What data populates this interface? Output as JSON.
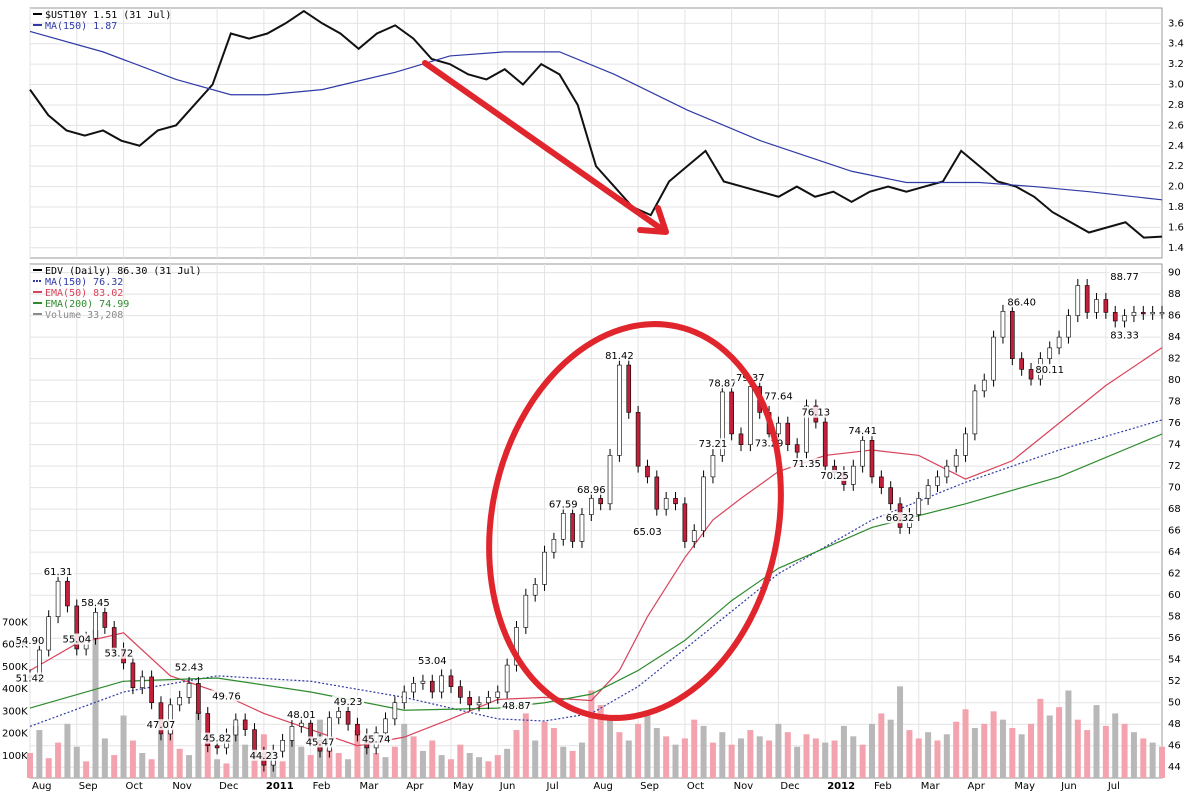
{
  "chart_data": [
    {
      "type": "line",
      "legend": [
        {
          "text": "$UST10Y 1.51 (31 Jul)",
          "color": "#000000"
        },
        {
          "text": "MA(150) 1.87",
          "color": "#2f3aa6"
        }
      ],
      "ylim": [
        1.3,
        3.75
      ],
      "yticks": [
        "1.4",
        "1.6",
        "1.8",
        "2.0",
        "2.2",
        "2.4",
        "2.6",
        "2.8",
        "3.0",
        "3.2",
        "3.4",
        "3.6"
      ],
      "series": [
        {
          "name": "$UST10Y",
          "x": [
            0,
            2,
            4,
            6,
            8,
            10,
            12,
            14,
            16,
            18,
            20,
            22,
            24,
            26,
            28,
            30,
            32,
            34,
            36,
            38,
            40,
            42,
            44,
            46,
            48,
            50,
            52,
            54,
            56,
            58,
            60,
            62,
            64,
            66,
            68,
            70,
            72,
            74,
            76,
            78,
            80,
            82,
            84,
            86,
            88,
            90,
            92,
            94,
            96,
            98,
            100,
            102,
            104,
            106,
            108,
            110,
            112,
            114,
            116,
            118,
            120,
            122,
            124
          ],
          "values": [
            2.95,
            2.7,
            2.55,
            2.5,
            2.55,
            2.45,
            2.4,
            2.55,
            2.6,
            2.8,
            3.0,
            3.5,
            3.45,
            3.5,
            3.6,
            3.72,
            3.6,
            3.5,
            3.35,
            3.5,
            3.58,
            3.45,
            3.25,
            3.2,
            3.1,
            3.05,
            3.15,
            3.0,
            3.2,
            3.1,
            2.8,
            2.2,
            2.0,
            1.8,
            1.72,
            2.05,
            2.2,
            2.35,
            2.05,
            2.0,
            1.95,
            1.9,
            2.0,
            1.9,
            1.95,
            1.85,
            1.95,
            2.0,
            1.95,
            2.0,
            2.05,
            2.35,
            2.2,
            2.05,
            2.0,
            1.9,
            1.75,
            1.65,
            1.55,
            1.6,
            1.65,
            1.5,
            1.51
          ]
        },
        {
          "name": "MA(150)",
          "x": [
            0,
            8,
            16,
            22,
            26,
            32,
            40,
            46,
            52,
            58,
            64,
            72,
            80,
            90,
            96,
            100,
            104,
            110,
            116,
            124
          ],
          "values": [
            3.52,
            3.32,
            3.05,
            2.9,
            2.9,
            2.95,
            3.12,
            3.28,
            3.32,
            3.32,
            3.1,
            2.75,
            2.45,
            2.15,
            2.04,
            2.04,
            2.04,
            2.0,
            1.95,
            1.87
          ]
        }
      ],
      "annotations": [
        "trend-arrow"
      ]
    },
    {
      "type": "line",
      "legend": [
        {
          "text": "EDV (Daily) 86.30 (31 Jul)",
          "color": "#000000"
        },
        {
          "text": "MA(150) 76.32",
          "color": "#2f3aa6"
        },
        {
          "text": "EMA(50) 83.02",
          "color": "#d9435b"
        },
        {
          "text": "EMA(200) 74.99",
          "color": "#2e8b2e"
        },
        {
          "text": "Volume 33,208",
          "color": "#8a8a8a"
        }
      ],
      "ylim": [
        43,
        90.8
      ],
      "yticks": [
        "44",
        "46",
        "48",
        "50",
        "52",
        "54",
        "56",
        "58",
        "60",
        "62",
        "64",
        "66",
        "68",
        "70",
        "72",
        "74",
        "76",
        "78",
        "80",
        "82",
        "84",
        "86",
        "88",
        "90"
      ],
      "volume_ticks": [
        "100K",
        "200K",
        "300K",
        "400K",
        "500K",
        "600K",
        "700K"
      ],
      "months": [
        {
          "label": "Aug",
          "x": 0,
          "bold": false
        },
        {
          "label": "Sep",
          "x": 5,
          "bold": false
        },
        {
          "label": "Oct",
          "x": 10,
          "bold": false
        },
        {
          "label": "Nov",
          "x": 15,
          "bold": false
        },
        {
          "label": "Dec",
          "x": 20,
          "bold": false
        },
        {
          "label": "2011",
          "x": 25,
          "bold": true
        },
        {
          "label": "Feb",
          "x": 30,
          "bold": false
        },
        {
          "label": "Mar",
          "x": 35,
          "bold": false
        },
        {
          "label": "Apr",
          "x": 40,
          "bold": false
        },
        {
          "label": "May",
          "x": 45,
          "bold": false
        },
        {
          "label": "Jun",
          "x": 50,
          "bold": false
        },
        {
          "label": "Jul",
          "x": 55,
          "bold": false
        },
        {
          "label": "Aug",
          "x": 60,
          "bold": false
        },
        {
          "label": "Sep",
          "x": 65,
          "bold": false
        },
        {
          "label": "Oct",
          "x": 70,
          "bold": false
        },
        {
          "label": "Nov",
          "x": 75,
          "bold": false
        },
        {
          "label": "Dec",
          "x": 80,
          "bold": false
        },
        {
          "label": "2012",
          "x": 85,
          "bold": true
        },
        {
          "label": "Feb",
          "x": 90,
          "bold": false
        },
        {
          "label": "Mar",
          "x": 95,
          "bold": false
        },
        {
          "label": "Apr",
          "x": 100,
          "bold": false
        },
        {
          "label": "May",
          "x": 105,
          "bold": false
        },
        {
          "label": "Jun",
          "x": 110,
          "bold": false
        },
        {
          "label": "Jul",
          "x": 115,
          "bold": false
        }
      ],
      "series": [
        {
          "name": "EDV",
          "x": [
            0,
            1,
            2,
            3,
            4,
            5,
            6,
            7,
            8,
            9,
            10,
            11,
            12,
            13,
            14,
            15,
            16,
            17,
            18,
            19,
            20,
            21,
            22,
            23,
            24,
            25,
            26,
            27,
            28,
            29,
            30,
            31,
            32,
            33,
            34,
            35,
            36,
            37,
            38,
            39,
            40,
            41,
            42,
            43,
            44,
            45,
            46,
            47,
            48,
            49,
            50,
            51,
            52,
            53,
            54,
            55,
            56,
            57,
            58,
            59,
            60,
            61,
            62,
            63,
            64,
            65,
            66,
            67,
            68,
            69,
            70,
            71,
            72,
            73,
            74,
            75,
            76,
            77,
            78,
            79,
            80,
            81,
            82,
            83,
            84,
            85,
            86,
            87,
            88,
            89,
            90,
            91,
            92,
            93,
            94,
            95,
            96,
            97,
            98,
            99,
            100,
            101,
            102,
            103,
            104,
            105,
            106,
            107,
            108,
            109,
            110,
            111,
            112,
            113,
            114,
            115,
            116,
            117,
            118,
            119,
            120,
            121
          ],
          "values": [
            52.5,
            54.9,
            58,
            61.3,
            59,
            55,
            56,
            58.4,
            57,
            55,
            53.7,
            51.4,
            52.4,
            50,
            47.1,
            49.8,
            50.5,
            51.8,
            49,
            46,
            45.8,
            47,
            48.4,
            47.5,
            45.3,
            44.2,
            45.5,
            46.5,
            47.8,
            48.1,
            46.5,
            45.5,
            48.6,
            49.2,
            48,
            47,
            45.8,
            47.2,
            48.5,
            50,
            51,
            51.8,
            52,
            51,
            52.5,
            51.5,
            50.5,
            49.8,
            50,
            50.5,
            51,
            53.5,
            57,
            60,
            61,
            64,
            65.2,
            67.6,
            65,
            67.5,
            69,
            68.5,
            73,
            81.4,
            77,
            72,
            71,
            68,
            69,
            68.5,
            65,
            66,
            71,
            73,
            78.9,
            75,
            74,
            79.4,
            77,
            75,
            76,
            74,
            73.3,
            77.6,
            76.1,
            72,
            71.4,
            70.3,
            72,
            74.4,
            71,
            70,
            68.5,
            66.3,
            67.5,
            69,
            70.2,
            71,
            72,
            73,
            75,
            79,
            80,
            84,
            86.4,
            82,
            81,
            80.1,
            82,
            83,
            84,
            86,
            88.8,
            86.3,
            87.5,
            86.3,
            85.5,
            86,
            86.3,
            86.2,
            86.3,
            86.3
          ]
        },
        {
          "name": "MA(150)",
          "x": [
            0,
            10,
            20,
            30,
            40,
            50,
            55,
            60,
            65,
            70,
            75,
            80,
            90,
            100,
            110,
            121
          ],
          "values": [
            47.8,
            51,
            52.5,
            52,
            50.5,
            48.5,
            48.3,
            49,
            51.5,
            55,
            58.5,
            62,
            67,
            70.5,
            73.5,
            76.3
          ]
        },
        {
          "name": "EMA(50)",
          "x": [
            0,
            5,
            10,
            15,
            20,
            25,
            30,
            35,
            40,
            45,
            50,
            55,
            60,
            63,
            66,
            70,
            73,
            76,
            80,
            85,
            90,
            95,
            100,
            105,
            110,
            115,
            121
          ],
          "values": [
            53,
            55.5,
            56.5,
            52.5,
            51,
            49,
            47.5,
            46,
            46.8,
            48.5,
            50.3,
            50.5,
            50.2,
            53,
            58,
            63.5,
            67,
            69,
            71.5,
            73,
            73.5,
            73,
            70.8,
            72.5,
            76,
            79.5,
            83.02
          ]
        },
        {
          "name": "EMA(200)",
          "x": [
            0,
            10,
            20,
            30,
            40,
            50,
            55,
            60,
            65,
            70,
            75,
            80,
            90,
            100,
            110,
            121
          ],
          "values": [
            49.5,
            52,
            52.3,
            51,
            49.3,
            49.5,
            50,
            50.8,
            53,
            55.8,
            59.5,
            62.5,
            66.3,
            68.5,
            71,
            74.99
          ]
        }
      ],
      "volume": [
        120,
        230,
        95,
        170,
        260,
        150,
        80,
        710,
        190,
        110,
        300,
        180,
        120,
        90,
        210,
        260,
        140,
        110,
        320,
        180,
        90,
        70,
        250,
        160,
        120,
        210,
        100,
        80,
        180,
        150,
        110,
        280,
        140,
        120,
        90,
        230,
        170,
        120,
        100,
        150,
        260,
        200,
        130,
        180,
        110,
        90,
        160,
        120,
        100,
        80,
        110,
        140,
        230,
        310,
        180,
        270,
        240,
        150,
        130,
        170,
        420,
        350,
        290,
        220,
        180,
        260,
        300,
        240,
        200,
        160,
        190,
        280,
        250,
        170,
        220,
        160,
        190,
        230,
        200,
        180,
        260,
        220,
        150,
        210,
        190,
        170,
        180,
        250,
        200,
        160,
        260,
        310,
        280,
        440,
        230,
        190,
        220,
        180,
        210,
        270,
        330,
        240,
        260,
        320,
        280,
        240,
        210,
        260,
        380,
        300,
        340,
        420,
        280,
        230,
        350,
        250,
        310,
        260,
        220,
        190,
        170,
        150
      ],
      "volume_up": [
        true,
        false,
        true,
        true,
        false,
        false,
        true,
        false,
        false,
        true,
        false,
        true,
        false,
        true,
        false,
        true,
        true,
        false,
        false,
        true,
        false,
        true,
        false,
        false,
        true,
        true,
        false,
        true,
        false,
        false,
        true,
        false,
        true,
        true,
        false,
        true,
        false,
        true,
        false,
        true,
        false,
        true,
        false,
        true,
        false,
        true,
        true,
        false,
        false,
        true,
        true,
        false,
        true,
        true,
        false,
        true,
        true,
        false,
        true,
        false,
        true,
        true,
        false,
        true,
        false,
        true,
        false,
        false,
        true,
        false,
        true,
        true,
        false,
        true,
        false,
        true,
        false,
        true,
        false,
        true,
        false,
        true,
        false,
        true,
        true,
        false,
        true,
        false,
        false,
        true,
        false,
        true,
        false,
        false,
        true,
        true,
        false,
        true,
        false,
        true,
        true,
        false,
        true,
        true,
        false,
        true,
        false,
        true,
        true,
        false,
        true,
        false,
        true,
        true,
        false,
        true,
        false,
        true,
        false,
        true,
        false,
        true
      ],
      "data_labels": [
        {
          "text": "61.31",
          "x": 3,
          "v": 61.31
        },
        {
          "text": "58.45",
          "x": 7,
          "v": 58.45
        },
        {
          "text": "55.04",
          "x": 5,
          "v": 55.04
        },
        {
          "text": "54.90",
          "x": 0,
          "v": 54.9
        },
        {
          "text": "53.72",
          "x": 9.5,
          "v": 53.72
        },
        {
          "text": "51.42",
          "x": 0,
          "v": 51.42
        },
        {
          "text": "52.43",
          "x": 17,
          "v": 52.43
        },
        {
          "text": "49.76",
          "x": 21,
          "v": 49.76
        },
        {
          "text": "47.07",
          "x": 14,
          "v": 47.07
        },
        {
          "text": "45.82",
          "x": 20,
          "v": 45.82
        },
        {
          "text": "44.23",
          "x": 25,
          "v": 44.23
        },
        {
          "text": "48.01",
          "x": 29,
          "v": 48.01
        },
        {
          "text": "49.23",
          "x": 34,
          "v": 49.23
        },
        {
          "text": "45.47",
          "x": 31,
          "v": 45.47
        },
        {
          "text": "45.74",
          "x": 37,
          "v": 45.74
        },
        {
          "text": "53.04",
          "x": 43,
          "v": 53.04
        },
        {
          "text": "48.87",
          "x": 52,
          "v": 48.87
        },
        {
          "text": "67.59",
          "x": 57,
          "v": 67.59
        },
        {
          "text": "68.96",
          "x": 60,
          "v": 68.96
        },
        {
          "text": "81.42",
          "x": 63,
          "v": 81.42
        },
        {
          "text": "65.03",
          "x": 66,
          "v": 65.03
        },
        {
          "text": "78.87",
          "x": 74,
          "v": 78.87
        },
        {
          "text": "79.37",
          "x": 77,
          "v": 79.37
        },
        {
          "text": "77.64",
          "x": 80,
          "v": 77.64
        },
        {
          "text": "73.29",
          "x": 79,
          "v": 73.29
        },
        {
          "text": "73.21",
          "x": 73,
          "v": 73.21
        },
        {
          "text": "76.13",
          "x": 84,
          "v": 76.13
        },
        {
          "text": "71.35",
          "x": 83,
          "v": 71.35
        },
        {
          "text": "70.25",
          "x": 86,
          "v": 70.25
        },
        {
          "text": "74.41",
          "x": 89,
          "v": 74.41
        },
        {
          "text": "66.32",
          "x": 93,
          "v": 66.32
        },
        {
          "text": "86.40",
          "x": 106,
          "v": 86.4
        },
        {
          "text": "80.11",
          "x": 109,
          "v": 80.11
        },
        {
          "text": "88.77",
          "x": 117,
          "v": 88.77
        },
        {
          "text": "83.33",
          "x": 117,
          "v": 83.33
        }
      ],
      "annotations": [
        "highlight-ellipse"
      ]
    }
  ]
}
